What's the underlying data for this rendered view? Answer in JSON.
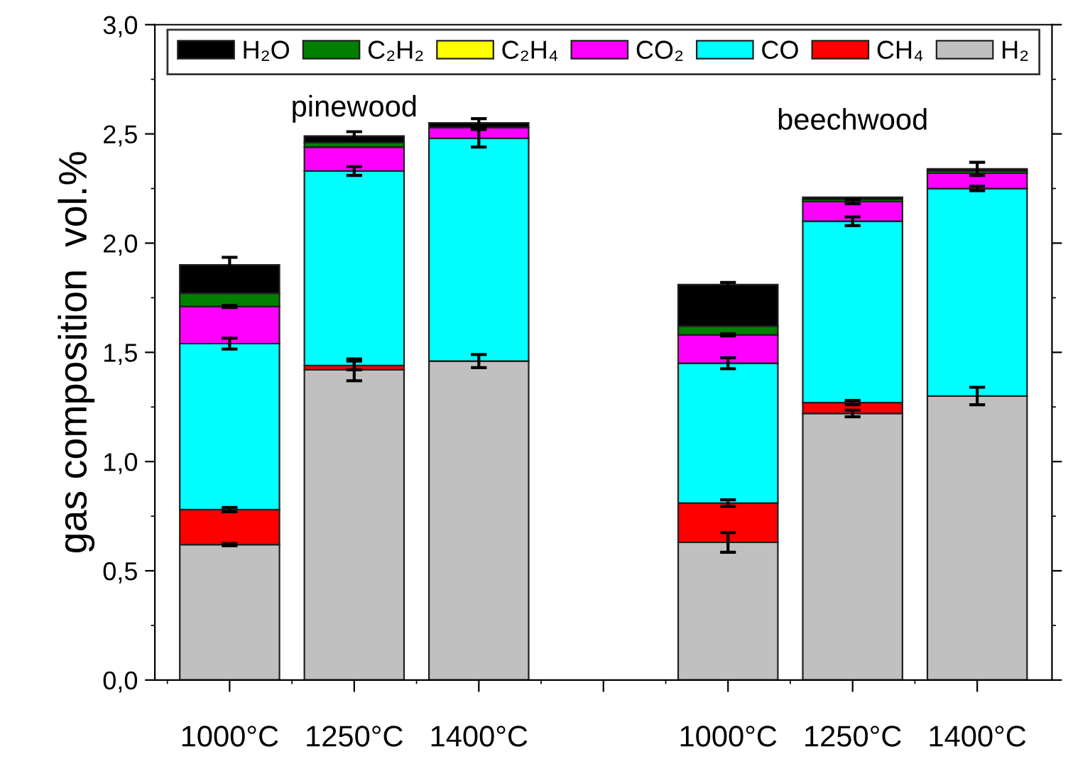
{
  "chart_data": {
    "type": "bar",
    "stacked": true,
    "ylabel": "gas composition  vol.%",
    "categories": [
      "1000°C",
      "1250°C",
      "1400°C",
      null,
      "1000°C",
      "1250°C",
      "1400°C"
    ],
    "series": [
      {
        "name": "H₂",
        "color": "#c0c0c0",
        "values": [
          0.62,
          1.42,
          1.46,
          null,
          0.63,
          1.22,
          1.3
        ],
        "errors": [
          0.005,
          0.05,
          0.03,
          null,
          0.045,
          0.015,
          0.04
        ]
      },
      {
        "name": "CH₄",
        "color": "#ff0000",
        "values": [
          0.16,
          0.02,
          0,
          null,
          0.18,
          0.05,
          0
        ],
        "errors": [
          0.01,
          0.02,
          null,
          null,
          0.015,
          0.01,
          null
        ]
      },
      {
        "name": "CO",
        "color": "#00ffff",
        "values": [
          0.76,
          0.89,
          1.02,
          null,
          0.64,
          0.83,
          0.95
        ],
        "errors": [
          0.025,
          0.02,
          0.04,
          null,
          0.025,
          0.02,
          0.01
        ]
      },
      {
        "name": "CO₂",
        "color": "#ff00ff",
        "values": [
          0.17,
          0.11,
          0.05,
          null,
          0.13,
          0.09,
          0.07
        ],
        "errors": [
          0.005,
          null,
          null,
          null,
          0.005,
          0.01,
          null
        ]
      },
      {
        "name": "C₂H₄",
        "color": "#ffff00",
        "values": [
          0,
          0,
          0,
          null,
          0,
          0,
          0
        ]
      },
      {
        "name": "C₂H₂",
        "color": "#008000",
        "values": [
          0.06,
          0.02,
          0,
          null,
          0.04,
          0.01,
          0.01
        ]
      },
      {
        "name": "H₂O",
        "color": "#000000",
        "values": [
          0.13,
          0.03,
          0.02,
          null,
          0.19,
          0.01,
          0.01
        ],
        "errors": [
          0.035,
          0.02,
          0.02,
          null,
          0.01,
          null,
          0.03
        ]
      }
    ],
    "ylim": [
      0,
      3.0
    ],
    "yticks": [
      {
        "value": 0,
        "label": "0,0"
      },
      {
        "value": 0.5,
        "label": "0,5"
      },
      {
        "value": 1.0,
        "label": "1,0"
      },
      {
        "value": 1.5,
        "label": "1,5"
      },
      {
        "value": 2.0,
        "label": "2,0"
      },
      {
        "value": 2.5,
        "label": "2,5"
      },
      {
        "value": 3.0,
        "label": "3,0"
      }
    ],
    "annotations": [
      "pinewood",
      "beechwood"
    ],
    "legend": "top",
    "grid": false
  }
}
